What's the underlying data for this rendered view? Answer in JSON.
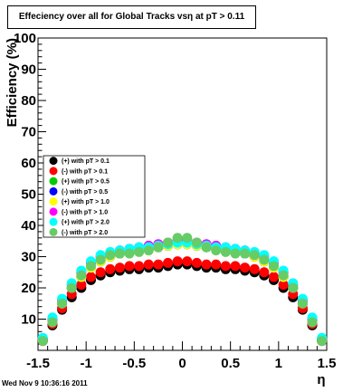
{
  "title": "Effeciency over all for Global Tracks vsη at pT > 0.11",
  "timestamp": "Wed Nov  9 10:36:16 2011",
  "chart_data": {
    "type": "scatter",
    "title": "Effeciency over all for Global Tracks vsη at pT > 0.11",
    "xlabel": "η",
    "ylabel": "Efficiency (%)",
    "xlim": [
      -1.5,
      1.5
    ],
    "ylim": [
      0,
      100
    ],
    "xticks": [
      -1.5,
      -1,
      -0.5,
      0,
      0.5,
      1,
      1.5
    ],
    "xtick_labels": [
      "-1.5",
      "-1",
      "-0.5",
      "0",
      "0.5",
      "1",
      "1.5"
    ],
    "yticks": [
      0,
      10,
      20,
      30,
      40,
      50,
      60,
      70,
      80,
      90,
      100
    ],
    "ytick_labels": [
      "",
      "10",
      "20",
      "30",
      "40",
      "50",
      "60",
      "70",
      "80",
      "90",
      "100"
    ],
    "grid": false,
    "legend_position": "left-middle",
    "x": [
      -1.45,
      -1.35,
      -1.25,
      -1.15,
      -1.05,
      -0.95,
      -0.85,
      -0.75,
      -0.65,
      -0.55,
      -0.45,
      -0.35,
      -0.25,
      -0.15,
      -0.05,
      0.05,
      0.15,
      0.25,
      0.35,
      0.45,
      0.55,
      0.65,
      0.75,
      0.85,
      0.95,
      1.05,
      1.15,
      1.25,
      1.35,
      1.45
    ],
    "series": [
      {
        "name": "(+) with pT > 0.1",
        "color": "#000000",
        "values": [
          3,
          8,
          13,
          17,
          20,
          22.5,
          24,
          25,
          25.5,
          26,
          26,
          26.5,
          26.5,
          27,
          27.5,
          27.5,
          27,
          26.5,
          26.5,
          26,
          26,
          25.5,
          25,
          24,
          22.5,
          20,
          17,
          13,
          8,
          3
        ]
      },
      {
        "name": "(-) with pT > 0.1",
        "color": "#ff0000",
        "values": [
          3,
          8.5,
          13.5,
          18,
          21,
          23.5,
          25,
          26,
          26.5,
          27,
          27,
          27.5,
          27.5,
          28,
          28.5,
          28.5,
          28,
          27.5,
          27.5,
          27,
          27,
          26.5,
          26,
          25,
          23.5,
          21,
          18,
          13.5,
          8.5,
          3
        ]
      },
      {
        "name": "(+) with pT > 0.5",
        "color": "#00cc00",
        "values": [
          3.5,
          9.5,
          15,
          20,
          23.5,
          26.5,
          28.5,
          30,
          31,
          31.5,
          32,
          32.5,
          33,
          33.5,
          34,
          34,
          33.5,
          33,
          32.5,
          32,
          31.5,
          31,
          30,
          28.5,
          26.5,
          23.5,
          20,
          15,
          9.5,
          3.5
        ]
      },
      {
        "name": "(-) with pT > 0.5",
        "color": "#0000ff",
        "values": [
          3.5,
          9.5,
          15,
          20,
          23.5,
          26.5,
          28.5,
          30,
          31,
          31.5,
          32,
          32.5,
          33,
          33.5,
          34,
          34,
          33.5,
          33,
          32.5,
          32,
          31.5,
          31,
          30,
          28.5,
          26.5,
          23.5,
          20,
          15,
          9.5,
          3.5
        ]
      },
      {
        "name": "(+) with pT > 1.0",
        "color": "#ffff00",
        "values": [
          3.5,
          9.5,
          15,
          20,
          23.5,
          26.5,
          28.5,
          30,
          31,
          31.5,
          32,
          32.5,
          33,
          33.5,
          34,
          34,
          33.5,
          33,
          32.5,
          32,
          31.5,
          31,
          30,
          28.5,
          26.5,
          23.5,
          20,
          15,
          9.5,
          3.5
        ]
      },
      {
        "name": "(-) with pT > 1.0",
        "color": "#ff00ff",
        "values": [
          3.5,
          10,
          16,
          21,
          25,
          28,
          30,
          31,
          32,
          32.5,
          33,
          33.5,
          34,
          34.5,
          35.5,
          35.5,
          34.5,
          34,
          33.5,
          33,
          32.5,
          32,
          31,
          30,
          28,
          25,
          21,
          16,
          10,
          3.5
        ]
      },
      {
        "name": "(+) with pT > 2.0",
        "color": "#00ffff",
        "values": [
          4,
          10.5,
          16.5,
          21.5,
          25.5,
          28.5,
          30.5,
          31.5,
          32,
          32.5,
          33,
          33,
          33.5,
          34,
          34.5,
          34.5,
          34,
          33.5,
          33,
          33,
          32.5,
          32,
          31.5,
          30.5,
          28.5,
          25.5,
          21.5,
          16.5,
          10.5,
          4
        ]
      },
      {
        "name": "(-) with pT > 2.0",
        "color": "#66cc66",
        "values": [
          3,
          9,
          15,
          20,
          24,
          27,
          29,
          30.5,
          31,
          31,
          31.5,
          32,
          33,
          34.5,
          36,
          36,
          34.5,
          33,
          32,
          31.5,
          31,
          31,
          30.5,
          29,
          27,
          24,
          20,
          15,
          9,
          3
        ]
      }
    ]
  }
}
